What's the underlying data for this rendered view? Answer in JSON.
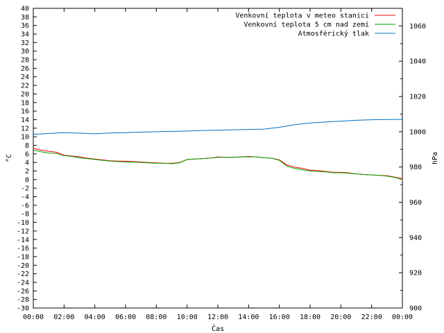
{
  "chart_data": {
    "type": "line",
    "xlabel": "Čas",
    "ylabel_left": "°C",
    "ylabel_right": "hPa",
    "xlim": [
      0,
      24
    ],
    "ylim_left": [
      -30,
      40
    ],
    "ylim_right": [
      900,
      1070
    ],
    "x_ticks": [
      "00:00",
      "02:00",
      "04:00",
      "06:00",
      "08:00",
      "10:00",
      "12:00",
      "14:00",
      "16:00",
      "18:00",
      "20:00",
      "22:00",
      "00:00"
    ],
    "y_left_ticks": [
      40,
      38,
      36,
      34,
      32,
      30,
      28,
      26,
      24,
      22,
      20,
      18,
      16,
      14,
      12,
      10,
      8,
      6,
      4,
      2,
      0,
      -2,
      -4,
      -6,
      -8,
      -10,
      -12,
      -14,
      -16,
      -18,
      -20,
      -22,
      -24,
      -26,
      -28,
      -30
    ],
    "y_right_ticks": [
      1060,
      1040,
      1020,
      1000,
      980,
      960,
      940,
      920,
      900
    ],
    "legend_position": "top-right",
    "grid": false,
    "series": [
      {
        "name": "Venkovní teplota v meteo stanici",
        "axis": "left",
        "color": "#ff0000",
        "x": [
          0,
          0.5,
          1,
          1.5,
          2,
          2.5,
          3,
          3.5,
          4,
          4.5,
          5,
          5.5,
          6,
          6.5,
          7,
          7.5,
          8,
          8.5,
          9,
          9.5,
          10,
          10.5,
          11,
          11.5,
          12,
          12.5,
          13,
          13.5,
          14,
          14.5,
          15,
          15.5,
          16,
          16.5,
          17,
          17.5,
          18,
          18.5,
          19,
          19.5,
          20,
          20.5,
          21,
          21.5,
          22,
          22.5,
          23,
          23.5,
          24
        ],
        "values": [
          7.3,
          6.9,
          6.6,
          6.4,
          5.7,
          5.5,
          5.3,
          5.0,
          4.8,
          4.6,
          4.4,
          4.3,
          4.3,
          4.2,
          4.1,
          4.0,
          3.9,
          3.8,
          3.8,
          4.0,
          4.7,
          4.8,
          4.9,
          5.0,
          5.3,
          5.2,
          5.2,
          5.3,
          5.4,
          5.3,
          5.1,
          5.0,
          4.6,
          3.4,
          2.9,
          2.6,
          2.2,
          2.1,
          1.9,
          1.7,
          1.7,
          1.6,
          1.3,
          1.2,
          1.1,
          1.0,
          0.9,
          0.6,
          0.2
        ]
      },
      {
        "name": "Venkovní teplota 5 cm nad zemí",
        "axis": "left",
        "color": "#00a000",
        "x": [
          0,
          0.5,
          1,
          1.5,
          2,
          2.5,
          3,
          3.5,
          4,
          4.5,
          5,
          5.5,
          6,
          6.5,
          7,
          7.5,
          8,
          8.5,
          9,
          9.5,
          10,
          10.5,
          11,
          11.5,
          12,
          12.5,
          13,
          13.5,
          14,
          14.5,
          15,
          15.5,
          16,
          16.5,
          17,
          17.5,
          18,
          18.5,
          19,
          19.5,
          20,
          20.5,
          21,
          21.5,
          22,
          22.5,
          23,
          23.5,
          24
        ],
        "values": [
          6.9,
          6.5,
          6.2,
          6.1,
          5.6,
          5.4,
          5.1,
          4.9,
          4.7,
          4.5,
          4.3,
          4.2,
          4.1,
          4.1,
          4.0,
          3.9,
          3.8,
          3.8,
          3.7,
          3.9,
          4.7,
          4.8,
          4.9,
          5.0,
          5.2,
          5.2,
          5.2,
          5.3,
          5.3,
          5.3,
          5.1,
          5.0,
          4.5,
          3.1,
          2.6,
          2.3,
          2.0,
          1.9,
          1.8,
          1.6,
          1.6,
          1.5,
          1.3,
          1.2,
          1.1,
          1.0,
          0.8,
          0.5,
          0.0
        ]
      },
      {
        "name": "Atmosférický tlak",
        "axis": "right",
        "color": "#0070c0",
        "x": [
          0,
          1,
          2,
          3,
          4,
          5,
          6,
          7,
          8,
          9,
          10,
          11,
          12,
          13,
          14,
          15,
          16,
          17,
          18,
          19,
          20,
          21,
          22,
          23,
          24
        ],
        "values": [
          998.5,
          999.0,
          999.5,
          999.2,
          998.8,
          999.3,
          999.5,
          999.8,
          1000.0,
          1000.2,
          1000.4,
          1000.7,
          1000.9,
          1001.1,
          1001.3,
          1001.5,
          1002.5,
          1004.0,
          1005.0,
          1005.5,
          1006.0,
          1006.5,
          1006.8,
          1006.9,
          1007.0
        ]
      }
    ]
  }
}
